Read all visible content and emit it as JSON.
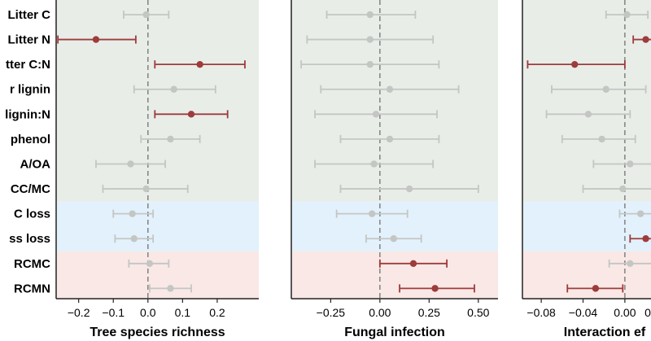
{
  "colors": {
    "band_green": "#e8ede8",
    "band_blue": "#e2f1fb",
    "band_red": "#f9e8e6",
    "significant": "#9e3b3b",
    "nonsignificant": "#c4c6c4"
  },
  "row_labels": [
    "Litter C",
    "Litter N",
    "tter C:N",
    "r lignin",
    "lignin:N",
    "phenol",
    "A/OA",
    "CC/MC",
    "C loss",
    "ss loss",
    "RCMC",
    "RCMN"
  ],
  "row_bands": [
    "green",
    "green",
    "green",
    "green",
    "green",
    "green",
    "green",
    "green",
    "blue",
    "blue",
    "red",
    "red"
  ],
  "chart_data": [
    {
      "type": "forest",
      "xlabel": "Tree species richness",
      "xlim": [
        -0.265,
        0.32
      ],
      "ticks": [
        -0.2,
        -0.1,
        0.0,
        0.1,
        0.2
      ],
      "tick_labels": [
        "−0.2",
        "−0.1",
        "0.0",
        "0.1",
        "0.2"
      ],
      "points": [
        {
          "est": -0.005,
          "lo": -0.07,
          "hi": 0.06,
          "sig": false
        },
        {
          "est": -0.15,
          "lo": -0.26,
          "hi": -0.035,
          "sig": true
        },
        {
          "est": 0.15,
          "lo": 0.02,
          "hi": 0.28,
          "sig": true
        },
        {
          "est": 0.075,
          "lo": -0.04,
          "hi": 0.195,
          "sig": false
        },
        {
          "est": 0.125,
          "lo": 0.02,
          "hi": 0.23,
          "sig": true
        },
        {
          "est": 0.065,
          "lo": -0.02,
          "hi": 0.15,
          "sig": false
        },
        {
          "est": -0.05,
          "lo": -0.15,
          "hi": 0.05,
          "sig": false
        },
        {
          "est": -0.005,
          "lo": -0.13,
          "hi": 0.115,
          "sig": false
        },
        {
          "est": -0.045,
          "lo": -0.1,
          "hi": 0.015,
          "sig": false
        },
        {
          "est": -0.04,
          "lo": -0.095,
          "hi": 0.015,
          "sig": false
        },
        {
          "est": 0.005,
          "lo": -0.055,
          "hi": 0.06,
          "sig": false
        },
        {
          "est": 0.065,
          "lo": 0.005,
          "hi": 0.125,
          "sig": false
        }
      ]
    },
    {
      "type": "forest",
      "xlabel": "Fungal infection",
      "xlim": [
        -0.45,
        0.6
      ],
      "ticks": [
        -0.25,
        0.0,
        0.25,
        0.5
      ],
      "tick_labels": [
        "−0.25",
        "0.00",
        "0.25",
        "0.50"
      ],
      "points": [
        {
          "est": -0.05,
          "lo": -0.27,
          "hi": 0.18,
          "sig": false
        },
        {
          "est": -0.05,
          "lo": -0.37,
          "hi": 0.27,
          "sig": false
        },
        {
          "est": -0.05,
          "lo": -0.4,
          "hi": 0.3,
          "sig": false
        },
        {
          "est": 0.05,
          "lo": -0.3,
          "hi": 0.4,
          "sig": false
        },
        {
          "est": -0.02,
          "lo": -0.33,
          "hi": 0.29,
          "sig": false
        },
        {
          "est": 0.05,
          "lo": -0.2,
          "hi": 0.3,
          "sig": false
        },
        {
          "est": -0.03,
          "lo": -0.33,
          "hi": 0.27,
          "sig": false
        },
        {
          "est": 0.15,
          "lo": -0.2,
          "hi": 0.5,
          "sig": false
        },
        {
          "est": -0.04,
          "lo": -0.22,
          "hi": 0.14,
          "sig": false
        },
        {
          "est": 0.07,
          "lo": -0.07,
          "hi": 0.21,
          "sig": false
        },
        {
          "est": 0.17,
          "lo": 0.0,
          "hi": 0.34,
          "sig": true
        },
        {
          "est": 0.28,
          "lo": 0.1,
          "hi": 0.48,
          "sig": true
        }
      ]
    },
    {
      "type": "forest",
      "xlabel": "Interaction ef",
      "xlim": [
        -0.098,
        0.025
      ],
      "ticks": [
        -0.08,
        -0.04,
        0.0
      ],
      "tick_labels": [
        "−0.08",
        "−0.04",
        "0.00"
      ],
      "extra_tick_labels": [
        "0"
      ],
      "points": [
        {
          "est": 0.002,
          "lo": -0.018,
          "hi": 0.022,
          "sig": false
        },
        {
          "est": 0.02,
          "lo": 0.008,
          "hi": 0.03,
          "sig": true
        },
        {
          "est": -0.048,
          "lo": -0.093,
          "hi": 0.0,
          "sig": true
        },
        {
          "est": -0.018,
          "lo": -0.07,
          "hi": 0.02,
          "sig": false
        },
        {
          "est": -0.035,
          "lo": -0.075,
          "hi": 0.005,
          "sig": false
        },
        {
          "est": -0.022,
          "lo": -0.06,
          "hi": 0.01,
          "sig": false
        },
        {
          "est": 0.005,
          "lo": -0.03,
          "hi": 0.03,
          "sig": false
        },
        {
          "est": -0.002,
          "lo": -0.04,
          "hi": 0.03,
          "sig": false
        },
        {
          "est": 0.015,
          "lo": -0.005,
          "hi": 0.03,
          "sig": false
        },
        {
          "est": 0.02,
          "lo": 0.005,
          "hi": 0.03,
          "sig": true
        },
        {
          "est": 0.005,
          "lo": -0.015,
          "hi": 0.03,
          "sig": false
        },
        {
          "est": -0.028,
          "lo": -0.055,
          "hi": -0.002,
          "sig": true
        }
      ]
    }
  ]
}
